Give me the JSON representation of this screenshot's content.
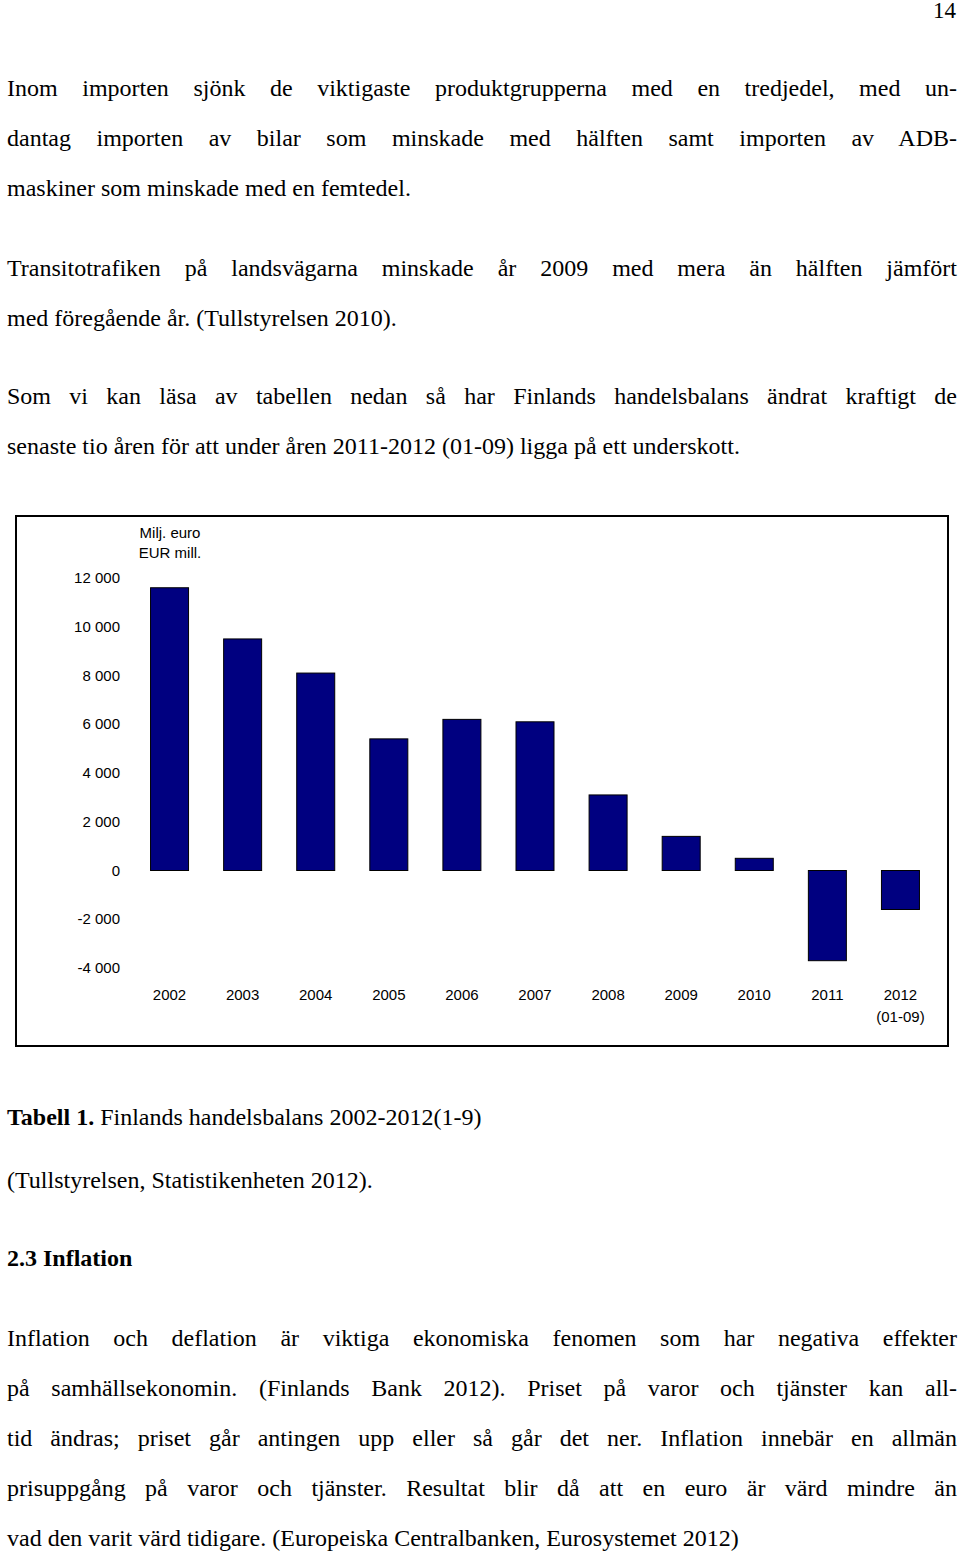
{
  "page_number": 14,
  "paragraphs": [
    {
      "lines": [
        "Inom importen sjönk de viktigaste produktgrupperna med en tredjedel, med un-",
        "dantag importen av bilar som minskade med hälften samt importen av ADB-",
        "maskiner som minskade med en femtedel."
      ]
    },
    {
      "lines": [
        "Transitotrafiken på landsvägarna minskade år 2009 med mera än hälften jämfört",
        "med föregående år. (Tullstyrelsen 2010)."
      ]
    },
    {
      "lines": [
        "Som vi kan läsa av tabellen nedan så har Finlands handelsbalans ändrat kraftigt de",
        "senaste tio åren för att under åren 2011-2012 (01-09) ligga på ett underskott."
      ]
    }
  ],
  "chart_data": {
    "type": "bar",
    "ylabel": [
      "Milj. euro",
      "EUR mill."
    ],
    "categories": [
      "2002",
      "2003",
      "2004",
      "2005",
      "2006",
      "2007",
      "2008",
      "2009",
      "2010",
      "2011",
      "2012 (01-09)"
    ],
    "values": [
      11600,
      9500,
      8100,
      5400,
      6200,
      6100,
      3100,
      1400,
      500,
      -3700,
      -1600
    ],
    "color": "#000080",
    "ylim": [
      -4000,
      12000
    ],
    "yticks": [
      {
        "value": -4000,
        "label": "-4 000"
      },
      {
        "value": -2000,
        "label": "-2 000"
      },
      0,
      {
        "value": 2000,
        "label": "2 000"
      },
      {
        "value": 4000,
        "label": "4 000"
      },
      {
        "value": 6000,
        "label": "6 000"
      },
      {
        "value": 8000,
        "label": "8 000"
      },
      {
        "value": 10000,
        "label": "10 000"
      },
      {
        "value": 12000,
        "label": "12 000"
      }
    ],
    "grid": false
  },
  "caption": {
    "label": "Tabell 1.",
    "text": "Finlands handelsbalans 2002-2012(1-9)",
    "source": "(Tullstyrelsen, Statistikenheten 2012)."
  },
  "section": {
    "heading": "2.3 Inflation",
    "paragraphs": [
      {
        "lines": [
          "Inflation och deflation är viktiga ekonomiska fenomen som har negativa effekter",
          "på samhällsekonomin. (Finlands Bank 2012). Priset på varor och tjänster kan all-",
          "tid ändras; priset går antingen upp eller så går det ner. Inflation innebär en allmän",
          "prisuppgång på varor och tjänster. Resultat blir då att en euro är värd mindre än",
          "vad den varit värd tidigare. (Europeiska Centralbanken, Eurosystemet 2012)"
        ]
      }
    ]
  }
}
